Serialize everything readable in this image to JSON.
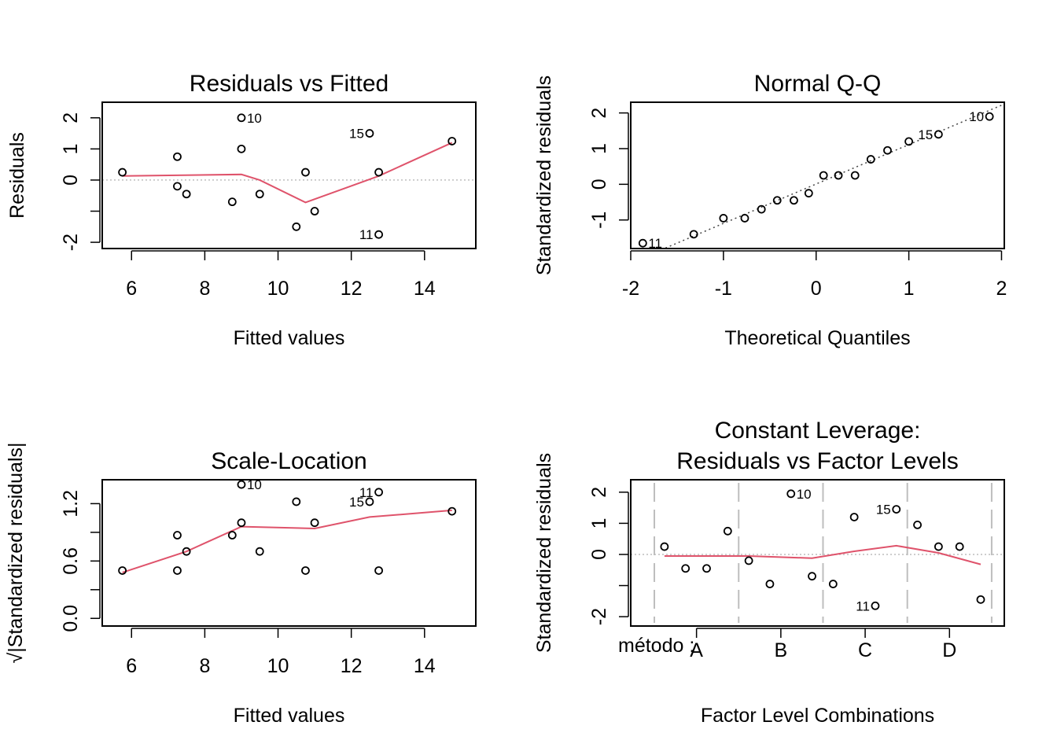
{
  "chart_data": [
    {
      "id": "rvf",
      "type": "scatter",
      "title": "Residuals vs Fitted",
      "xlabel": "Fitted values",
      "ylabel": "Residuals",
      "xlim": [
        5.2,
        15.4
      ],
      "ylim": [
        -2.2,
        2.5
      ],
      "xticks": [
        6,
        8,
        10,
        12,
        14
      ],
      "yticks": [
        -2,
        -1,
        0,
        1,
        2
      ],
      "ytick_labels": [
        "-2",
        "",
        "0",
        "1",
        "2"
      ],
      "points": [
        {
          "x": 5.75,
          "y": 0.25
        },
        {
          "x": 7.25,
          "y": 0.75
        },
        {
          "x": 7.25,
          "y": -0.2
        },
        {
          "x": 7.5,
          "y": -0.45
        },
        {
          "x": 8.75,
          "y": -0.7
        },
        {
          "x": 9.0,
          "y": 2.0
        },
        {
          "x": 9.0,
          "y": 1.0
        },
        {
          "x": 9.5,
          "y": -0.45
        },
        {
          "x": 10.5,
          "y": -1.5
        },
        {
          "x": 10.75,
          "y": 0.25
        },
        {
          "x": 11.0,
          "y": -1.0
        },
        {
          "x": 12.5,
          "y": 1.5
        },
        {
          "x": 12.75,
          "y": 0.25
        },
        {
          "x": 12.75,
          "y": -1.75
        },
        {
          "x": 14.75,
          "y": 1.25
        }
      ],
      "smooth": [
        {
          "x": 5.75,
          "y": 0.13
        },
        {
          "x": 9.0,
          "y": 0.18
        },
        {
          "x": 9.5,
          "y": 0.0
        },
        {
          "x": 10.75,
          "y": -0.72
        },
        {
          "x": 12.75,
          "y": 0.13
        },
        {
          "x": 14.75,
          "y": 1.2
        }
      ],
      "refline": 0,
      "labels": [
        {
          "text": "10",
          "x": 9.0,
          "y": 2.0,
          "pos": "right"
        },
        {
          "text": "15",
          "x": 12.5,
          "y": 1.5,
          "pos": "left"
        },
        {
          "text": "11",
          "x": 12.75,
          "y": -1.75,
          "pos": "left"
        }
      ]
    },
    {
      "id": "qq",
      "type": "scatter",
      "title": "Normal Q-Q",
      "xlabel": "Theoretical Quantiles",
      "ylabel": "Standardized residuals",
      "xlim": [
        -2.0,
        2.03
      ],
      "ylim": [
        -1.8,
        2.3
      ],
      "xticks": [
        -2,
        -1,
        0,
        1,
        2
      ],
      "yticks": [
        -1,
        0,
        1,
        2
      ],
      "ytick_labels": [
        "-1",
        "0",
        "1",
        "2"
      ],
      "points": [
        {
          "x": -1.87,
          "y": -1.65
        },
        {
          "x": -1.32,
          "y": -1.4
        },
        {
          "x": -1.0,
          "y": -0.95
        },
        {
          "x": -0.77,
          "y": -0.95
        },
        {
          "x": -0.59,
          "y": -0.7
        },
        {
          "x": -0.42,
          "y": -0.45
        },
        {
          "x": -0.24,
          "y": -0.45
        },
        {
          "x": -0.08,
          "y": -0.25
        },
        {
          "x": 0.08,
          "y": 0.25
        },
        {
          "x": 0.24,
          "y": 0.25
        },
        {
          "x": 0.42,
          "y": 0.25
        },
        {
          "x": 0.59,
          "y": 0.7
        },
        {
          "x": 0.77,
          "y": 0.95
        },
        {
          "x": 1.0,
          "y": 1.2
        },
        {
          "x": 1.32,
          "y": 1.4
        },
        {
          "x": 1.87,
          "y": 1.9
        }
      ],
      "refline_points": [
        {
          "x": -2.0,
          "y": -2.2
        },
        {
          "x": 2.03,
          "y": 2.25
        }
      ],
      "labels": [
        {
          "text": "10",
          "x": 1.87,
          "y": 1.9,
          "pos": "left"
        },
        {
          "text": "15",
          "x": 1.32,
          "y": 1.4,
          "pos": "left"
        },
        {
          "text": "11",
          "x": -1.87,
          "y": -1.65,
          "pos": "right"
        }
      ]
    },
    {
      "id": "sl",
      "type": "scatter",
      "title": "Scale-Location",
      "xlabel": "Fitted values",
      "ylabel": "√|Standardized residuals|",
      "xlim": [
        5.2,
        15.4
      ],
      "ylim": [
        -0.08,
        1.45
      ],
      "xticks": [
        6,
        8,
        10,
        12,
        14
      ],
      "yticks": [
        0.0,
        0.6,
        1.2
      ],
      "ytick_labels": [
        "0.0",
        "0.6",
        "1.2"
      ],
      "minor_yticks": [
        0.3,
        0.9
      ],
      "points": [
        {
          "x": 5.75,
          "y": 0.5
        },
        {
          "x": 7.25,
          "y": 0.87
        },
        {
          "x": 7.25,
          "y": 0.5
        },
        {
          "x": 7.5,
          "y": 0.7
        },
        {
          "x": 8.75,
          "y": 0.87
        },
        {
          "x": 9.0,
          "y": 1.4
        },
        {
          "x": 9.0,
          "y": 1.0
        },
        {
          "x": 9.5,
          "y": 0.7
        },
        {
          "x": 10.5,
          "y": 1.22
        },
        {
          "x": 10.75,
          "y": 0.5
        },
        {
          "x": 11.0,
          "y": 1.0
        },
        {
          "x": 12.5,
          "y": 1.22
        },
        {
          "x": 12.75,
          "y": 0.5
        },
        {
          "x": 12.75,
          "y": 1.32
        },
        {
          "x": 14.75,
          "y": 1.12
        }
      ],
      "smooth": [
        {
          "x": 5.75,
          "y": 0.48
        },
        {
          "x": 7.5,
          "y": 0.7
        },
        {
          "x": 9.0,
          "y": 0.96
        },
        {
          "x": 11.0,
          "y": 0.94
        },
        {
          "x": 12.5,
          "y": 1.06
        },
        {
          "x": 14.75,
          "y": 1.13
        }
      ],
      "labels": [
        {
          "text": "10",
          "x": 9.0,
          "y": 1.4,
          "pos": "right"
        },
        {
          "text": "15",
          "x": 12.5,
          "y": 1.22,
          "pos": "left"
        },
        {
          "text": "11",
          "x": 12.75,
          "y": 1.32,
          "pos": "left"
        }
      ]
    },
    {
      "id": "cl",
      "type": "scatter",
      "title": "Constant Leverage:",
      "title2": "Residuals vs Factor Levels",
      "xlabel": "Factor Level Combinations",
      "ylabel": "Standardized residuals",
      "factor_label": "método :",
      "xlim": [
        0.22,
        4.65
      ],
      "ylim": [
        -2.3,
        2.4
      ],
      "xticks": [
        1,
        2,
        3,
        4
      ],
      "xtick_labels": [
        "A",
        "B",
        "C",
        "D"
      ],
      "yticks": [
        -2,
        -1,
        0,
        1,
        2
      ],
      "ytick_labels": [
        "-2",
        "",
        "0",
        "1",
        "2"
      ],
      "separators": [
        0.5,
        1.5,
        2.5,
        3.5,
        4.5
      ],
      "points": [
        {
          "x": 0.62,
          "y": 0.25
        },
        {
          "x": 0.87,
          "y": -0.45
        },
        {
          "x": 1.12,
          "y": -0.45
        },
        {
          "x": 1.37,
          "y": 0.75
        },
        {
          "x": 1.62,
          "y": -0.2
        },
        {
          "x": 1.87,
          "y": -0.95
        },
        {
          "x": 2.12,
          "y": 1.95
        },
        {
          "x": 2.37,
          "y": -0.7
        },
        {
          "x": 2.62,
          "y": -0.95
        },
        {
          "x": 2.87,
          "y": 1.2
        },
        {
          "x": 3.12,
          "y": -1.65
        },
        {
          "x": 3.37,
          "y": 1.45
        },
        {
          "x": 3.62,
          "y": 0.95
        },
        {
          "x": 3.87,
          "y": 0.25
        },
        {
          "x": 4.12,
          "y": 0.25
        },
        {
          "x": 4.37,
          "y": -1.45
        }
      ],
      "smooth": [
        {
          "x": 0.62,
          "y": -0.05
        },
        {
          "x": 1.62,
          "y": -0.05
        },
        {
          "x": 2.37,
          "y": -0.12
        },
        {
          "x": 2.87,
          "y": 0.1
        },
        {
          "x": 3.37,
          "y": 0.28
        },
        {
          "x": 3.87,
          "y": 0.05
        },
        {
          "x": 4.37,
          "y": -0.32
        }
      ],
      "refline": 0,
      "labels": [
        {
          "text": "10",
          "x": 2.12,
          "y": 1.95,
          "pos": "right"
        },
        {
          "text": "15",
          "x": 3.37,
          "y": 1.45,
          "pos": "left"
        },
        {
          "text": "11",
          "x": 3.12,
          "y": -1.65,
          "pos": "left"
        }
      ]
    }
  ]
}
